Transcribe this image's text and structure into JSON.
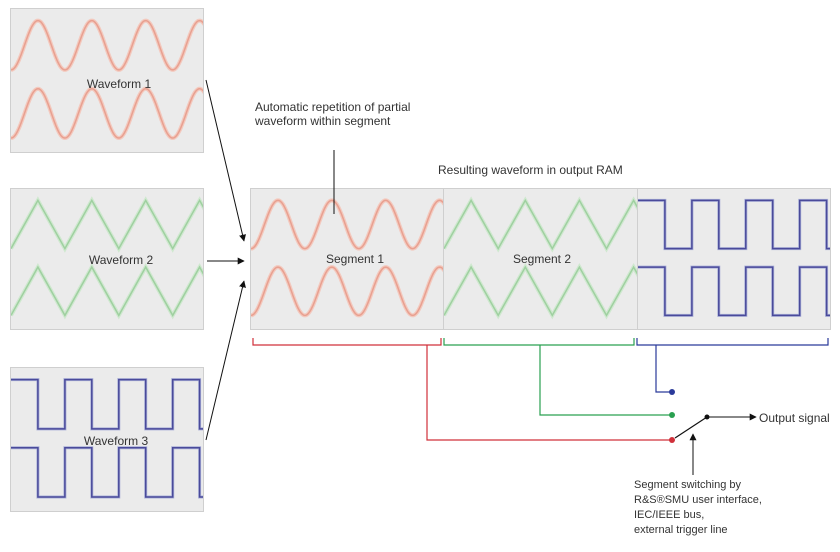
{
  "waveforms": {
    "w1": "Waveform 1",
    "w2": "Waveform 2",
    "w3": "Waveform 3"
  },
  "segments": {
    "s1": "Segment 1",
    "s2": "Segment 2"
  },
  "annotations": {
    "repetition_line1": "Automatic repetition of partial",
    "repetition_line2": "waveform within segment",
    "output_ram": "Resulting waveform in output RAM",
    "output_signal": "Output signal",
    "switching_line1": "Segment switching by",
    "switching_line2": "R&S®SMU user interface,",
    "switching_line3": "IEC/IEEE bus,",
    "switching_line4": "external trigger line"
  },
  "colors": {
    "sine": "#e8a090",
    "triangle": "#9fd0a0",
    "square": "#4a4a9a",
    "square_light": "#aab0d8",
    "red": "#d0303a",
    "green": "#2aa050",
    "blue": "#2a3a9a",
    "black": "#111111"
  }
}
